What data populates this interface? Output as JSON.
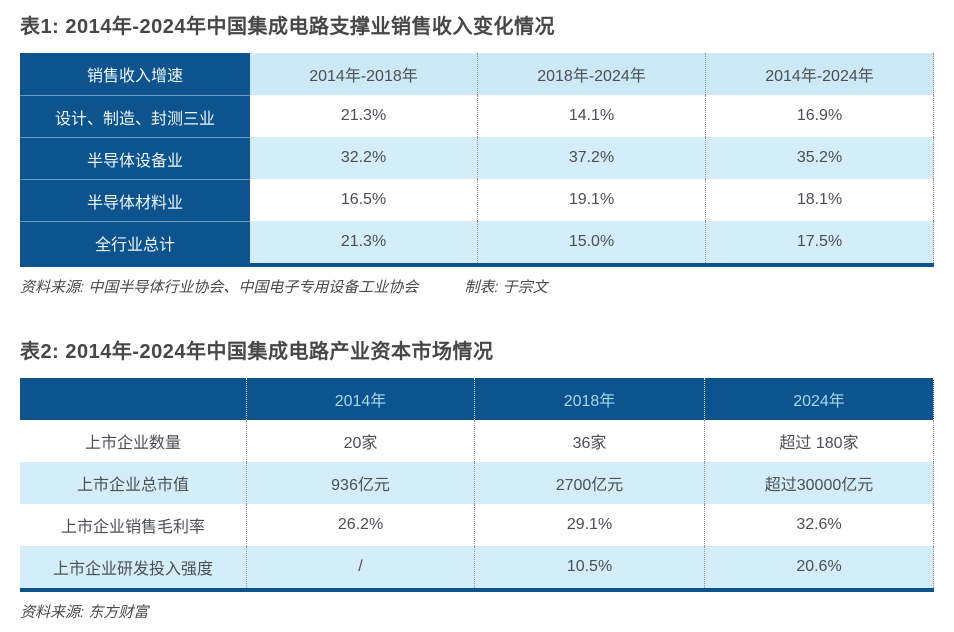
{
  "colors": {
    "dark_blue": "#0d538e",
    "stripe_light_blue": "#d4eef9",
    "header_light_blue": "#cbe9f6",
    "table2_header_text": "#a5d7ed",
    "body_text": "#4c4f54",
    "title_text": "#474747",
    "dotted_separator": "#8f969c"
  },
  "table1": {
    "title": "表1: 2014年-2024年中国集成电路支撑业销售收入变化情况",
    "header": [
      "销售收入增速",
      "2014年-2018年",
      "2018年-2024年",
      "2014年-2024年"
    ],
    "rows": [
      {
        "label": "设计、制造、封测三业",
        "values": [
          "21.3%",
          "14.1%",
          "16.9%"
        ]
      },
      {
        "label": "半导体设备业",
        "values": [
          "32.2%",
          "37.2%",
          "35.2%"
        ]
      },
      {
        "label": "半导体材料业",
        "values": [
          "16.5%",
          "19.1%",
          "18.1%"
        ]
      },
      {
        "label": "全行业总计",
        "values": [
          "21.3%",
          "15.0%",
          "17.5%"
        ]
      }
    ],
    "source": "资料来源: 中国半导体行业协会、中国电子专用设备工业协会",
    "credit": "制表: 于宗文"
  },
  "table2": {
    "title": "表2: 2014年-2024年中国集成电路产业资本市场情况",
    "header": [
      "",
      "2014年",
      "2018年",
      "2024年"
    ],
    "rows": [
      {
        "label": "上市企业数量",
        "values": [
          "20家",
          "36家",
          "超过 180家"
        ]
      },
      {
        "label": "上市企业总市值",
        "values": [
          "936亿元",
          "2700亿元",
          "超过30000亿元"
        ]
      },
      {
        "label": "上市企业销售毛利率",
        "values": [
          "26.2%",
          "29.1%",
          "32.6%"
        ]
      },
      {
        "label": "上市企业研发投入强度",
        "values": [
          "/",
          "10.5%",
          "20.6%"
        ]
      }
    ],
    "source": "资料来源: 东方财富"
  }
}
